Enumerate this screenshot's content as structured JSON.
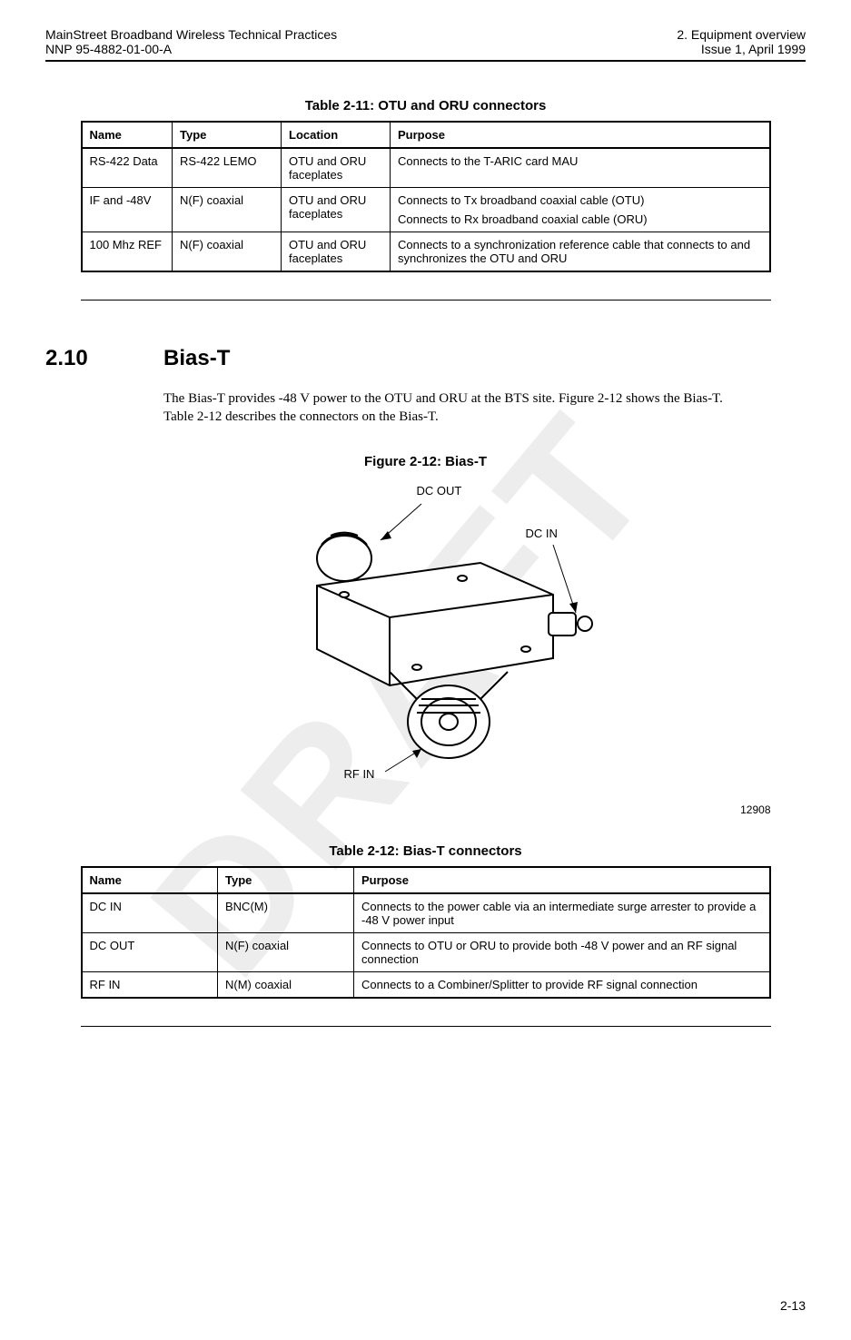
{
  "header": {
    "left_top": "MainStreet Broadband Wireless Technical Practices",
    "left_bottom": "NNP 95-4882-01-00-A",
    "right_top": "2. Equipment overview",
    "right_bottom": "Issue 1, April 1999"
  },
  "watermark": "DRAFT",
  "table1": {
    "caption": "Table 2-11:  OTU and ORU connectors",
    "columns": [
      "Name",
      "Type",
      "Location",
      "Purpose"
    ],
    "col_widths": [
      "100px",
      "120px",
      "120px",
      "auto"
    ],
    "rows": [
      [
        "RS-422 Data",
        "RS-422 LEMO",
        "OTU and ORU faceplates",
        "Connects to the T-ARIC card MAU"
      ],
      [
        "IF and -48V",
        "N(F) coaxial",
        "OTU and ORU faceplates",
        "Connects to Tx broadband coaxial cable (OTU)\nConnects to Rx broadband coaxial cable (ORU)"
      ],
      [
        "100 Mhz REF",
        "N(F) coaxial",
        "OTU and ORU faceplates",
        "Connects to a synchronization reference cable that connects to and synchronizes the OTU and ORU"
      ]
    ]
  },
  "section": {
    "number": "2.10",
    "title": "Bias-T",
    "body": "The Bias-T provides -48 V power to the OTU and ORU at the BTS site. Figure 2-12 shows the Bias-T. Table 2-12 describes the connectors on the Bias-T."
  },
  "figure": {
    "caption": "Figure 2-12:  Bias-T",
    "labels": {
      "dc_out": "DC OUT",
      "dc_in": "DC IN",
      "rf_in": "RF IN"
    },
    "id": "12908"
  },
  "table2": {
    "caption": "Table 2-12:  Bias-T connectors",
    "columns": [
      "Name",
      "Type",
      "Purpose"
    ],
    "col_widths": [
      "150px",
      "150px",
      "auto"
    ],
    "rows": [
      [
        "DC IN",
        "BNC(M)",
        "Connects to the power cable via an intermediate surge arrester to provide a -48 V power input"
      ],
      [
        "DC OUT",
        "N(F) coaxial",
        "Connects to OTU or ORU to provide both -48 V power and an RF signal connection"
      ],
      [
        "RF IN",
        "N(M) coaxial",
        "Connects to a Combiner/Splitter to provide RF signal connection"
      ]
    ]
  },
  "footer": "2-13",
  "colors": {
    "text": "#000000",
    "bg": "#ffffff",
    "rule": "#000000",
    "watermark": "rgba(0,0,0,0.07)"
  },
  "fonts": {
    "sans": "Arial, Helvetica, sans-serif",
    "serif": "Book Antiqua, Palatino, serif",
    "caption_size": 15,
    "body_size": 15,
    "table_size": 13,
    "header_size": 14,
    "section_size": 24
  }
}
